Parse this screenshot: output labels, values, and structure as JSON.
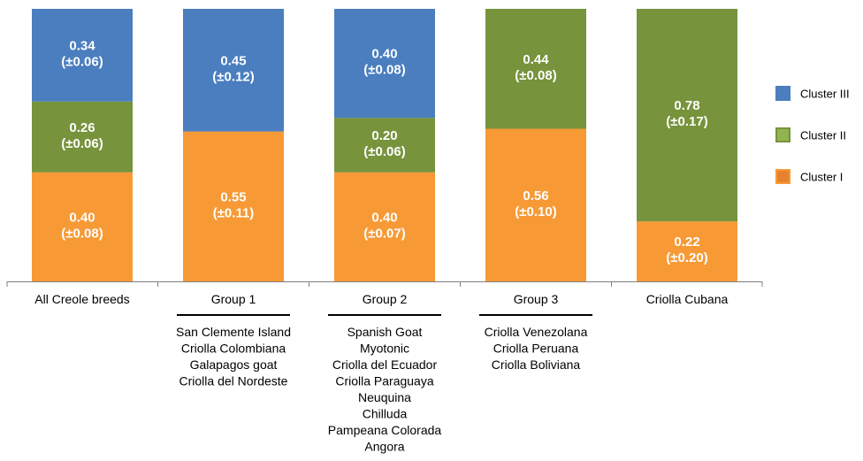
{
  "chart_data": {
    "type": "bar",
    "stacked": true,
    "categories": [
      "All Creole breeds",
      "Group 1",
      "Group 2",
      "Group 3",
      "Criolla Cubana"
    ],
    "series": [
      {
        "name": "Cluster I",
        "color": "#f79a36",
        "values": [
          0.4,
          0.55,
          0.4,
          0.56,
          0.22
        ],
        "labels": [
          "0.40\n(±0.08)",
          "0.55\n(±0.11)",
          "0.40\n(±0.07)",
          "0.56\n(±0.10)",
          "0.22\n(±0.20)"
        ]
      },
      {
        "name": "Cluster II",
        "color": "#77933c",
        "values": [
          0.26,
          0,
          0.2,
          0.44,
          0.78
        ],
        "labels": [
          "0.26\n(±0.06)",
          "",
          "0.20\n(±0.06)",
          "0.44\n(±0.08)",
          "0.78\n(±0.17)"
        ]
      },
      {
        "name": "Cluster III",
        "color": "#4a7ebf",
        "values": [
          0.34,
          0.45,
          0.4,
          0,
          0
        ],
        "labels": [
          "0.34\n(±0.06)",
          "0.45\n(±0.12)",
          "0.40\n(±0.08)",
          "",
          ""
        ]
      }
    ],
    "ylim": [
      0,
      1
    ],
    "legend": {
      "position": "right",
      "order": [
        "Cluster III",
        "Cluster II",
        "Cluster I"
      ],
      "swatch_colors": {
        "Cluster III": "#4a7ebf",
        "Cluster II": "#92b450",
        "Cluster I": "#e8812f"
      }
    },
    "group_members": [
      [],
      [
        "San Clemente Island",
        "Criolla Colombiana",
        "Galapagos goat",
        "Criolla del Nordeste"
      ],
      [
        "Spanish Goat",
        "Myotonic",
        "Criolla del Ecuador",
        "Criolla Paraguaya",
        "Neuquina",
        "Chilluda",
        "Pampeana Colorada",
        "Angora"
      ],
      [
        "Criolla Venezolana",
        "Criolla Peruana",
        "Criolla Boliviana"
      ],
      []
    ],
    "grid": false
  }
}
